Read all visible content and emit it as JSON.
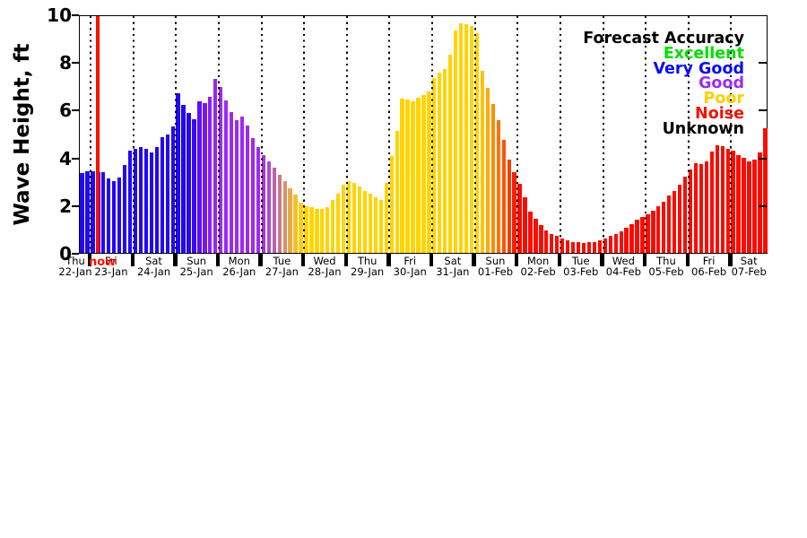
{
  "y_axis": {
    "label": "Wave Height, ft",
    "ticks": [
      0,
      2,
      4,
      6,
      8,
      10
    ]
  },
  "legend": {
    "title": "Forecast Accuracy",
    "title_color": "#000000",
    "items": [
      {
        "label": "Excellent",
        "color": "#00dd00"
      },
      {
        "label": "Very Good",
        "color": "#0a0af8"
      },
      {
        "label": "Good",
        "color": "#9b2df2"
      },
      {
        "label": "Poor",
        "color": "#ffd000"
      },
      {
        "label": "Noise",
        "color": "#fb0f00"
      },
      {
        "label": "Unknown",
        "color": "#000000"
      }
    ]
  },
  "chart_data": {
    "type": "bar",
    "title": "",
    "ylabel": "Wave Height, ft",
    "ylim": [
      0,
      10
    ],
    "yticks": [
      0,
      2,
      4,
      6,
      8,
      10
    ],
    "grid": "vertical-dotted-at-day-boundaries",
    "legend_position": "top-right-inside",
    "bar_interval_hours": 3,
    "now_line": {
      "label": "now",
      "color": "#fb0f00",
      "at_date": "23-Jan"
    },
    "days": [
      {
        "name": "Thu",
        "date": "22-Jan",
        "values": [
          3.34,
          3.42
        ],
        "colors": [
          "#2209f0",
          "#2209f0"
        ]
      },
      {
        "name": "Fri",
        "date": "23-Jan",
        "values": [
          3.42,
          3.4,
          3.37,
          3.12,
          3.02,
          3.17,
          3.7,
          4.28
        ],
        "colors": [
          "#2209f0",
          "#2209f0",
          "#2209f0",
          "#2209f0",
          "#2209f0",
          "#2209f0",
          "#2209f0",
          "#2209f0"
        ]
      },
      {
        "name": "Sat",
        "date": "24-Jan",
        "values": [
          4.38,
          4.43,
          4.35,
          4.2,
          4.45,
          4.85,
          4.95,
          5.3
        ],
        "colors": [
          "#2209f0",
          "#2209f0",
          "#2209f0",
          "#2209f0",
          "#2209f0",
          "#2209f0",
          "#2209f0",
          "#2209f0"
        ]
      },
      {
        "name": "Sun",
        "date": "25-Jan",
        "values": [
          6.68,
          6.2,
          5.88,
          5.6,
          6.36,
          6.28,
          6.55,
          7.3
        ],
        "colors": [
          "#2209f0",
          "#2209f0",
          "#2209f0",
          "#3a0af1",
          "#5a11f1",
          "#7618f2",
          "#8b20f2",
          "#9526f2"
        ]
      },
      {
        "name": "Mon",
        "date": "26-Jan",
        "values": [
          6.95,
          6.4,
          5.9,
          5.55,
          5.7,
          5.35,
          4.8,
          4.45
        ],
        "colors": [
          "#9d2af2",
          "#9d2af2",
          "#9d2af2",
          "#9d2af2",
          "#9d2af2",
          "#9d2af2",
          "#9d2af2",
          "#9d2af2"
        ]
      },
      {
        "name": "Tue",
        "date": "27-Jan",
        "values": [
          4.1,
          3.82,
          3.56,
          3.26,
          3.0,
          2.7,
          2.44,
          2.12
        ],
        "colors": [
          "#a135e3",
          "#ad4cc6",
          "#bb63a8",
          "#c97a8a",
          "#d7926b",
          "#e5aa4c",
          "#f2c12a",
          "#fcd012"
        ]
      },
      {
        "name": "Wed",
        "date": "28-Jan",
        "values": [
          1.95,
          1.9,
          1.86,
          1.86,
          1.92,
          2.2,
          2.5,
          2.85
        ],
        "colors": [
          "#ffd400",
          "#ffd400",
          "#ffd400",
          "#ffd400",
          "#ffd400",
          "#ffd400",
          "#ffd400",
          "#ffd400"
        ]
      },
      {
        "name": "Thu",
        "date": "29-Jan",
        "values": [
          3.02,
          2.95,
          2.78,
          2.6,
          2.48,
          2.35,
          2.2,
          2.95
        ],
        "colors": [
          "#ffd400",
          "#ffd400",
          "#ffd400",
          "#ffd400",
          "#ffd400",
          "#ffd400",
          "#ffd400",
          "#ffd400"
        ]
      },
      {
        "name": "Fri",
        "date": "30-Jan",
        "values": [
          4.07,
          5.13,
          6.48,
          6.42,
          6.35,
          6.5,
          6.6,
          6.75
        ],
        "colors": [
          "#ffd400",
          "#ffd400",
          "#ffd400",
          "#ffd400",
          "#ffd400",
          "#ffd400",
          "#ffd400",
          "#ffd400"
        ]
      },
      {
        "name": "Sat",
        "date": "31-Jan",
        "values": [
          7.35,
          7.55,
          7.7,
          8.32,
          9.31,
          9.62,
          9.58,
          9.52
        ],
        "colors": [
          "#ffd400",
          "#ffd400",
          "#ffd400",
          "#ffd400",
          "#ffd400",
          "#ffd400",
          "#ffd400",
          "#ffd400"
        ]
      },
      {
        "name": "Sun",
        "date": "01-Feb",
        "values": [
          9.2,
          7.62,
          6.92,
          6.23,
          5.56,
          4.74,
          3.92,
          3.39
        ],
        "colors": [
          "#ffd400",
          "#fec303",
          "#fdaa02",
          "#fc8f01",
          "#fb7301",
          "#fa5700",
          "#f93b00",
          "#f92000"
        ]
      },
      {
        "name": "Mon",
        "date": "02-Feb",
        "values": [
          2.89,
          2.32,
          1.73,
          1.44,
          1.15,
          0.95,
          0.8,
          0.7
        ],
        "colors": [
          "#f90d00",
          "#f90d00",
          "#f90d00",
          "#f90d00",
          "#f90d00",
          "#f90d00",
          "#f90d00",
          "#f90d00"
        ]
      },
      {
        "name": "Tue",
        "date": "03-Feb",
        "values": [
          0.6,
          0.52,
          0.47,
          0.44,
          0.42,
          0.44,
          0.47,
          0.52
        ],
        "colors": [
          "#f90d00",
          "#f90d00",
          "#f90d00",
          "#f90d00",
          "#f90d00",
          "#f90d00",
          "#f90d00",
          "#f90d00"
        ]
      },
      {
        "name": "Wed",
        "date": "04-Feb",
        "values": [
          0.62,
          0.7,
          0.78,
          0.9,
          1.06,
          1.22,
          1.38,
          1.5
        ],
        "colors": [
          "#f90d00",
          "#f90d00",
          "#f90d00",
          "#f90d00",
          "#f90d00",
          "#f90d00",
          "#f90d00",
          "#f90d00"
        ]
      },
      {
        "name": "Thu",
        "date": "05-Feb",
        "values": [
          1.6,
          1.75,
          1.95,
          2.15,
          2.4,
          2.6,
          2.86,
          3.2
        ],
        "colors": [
          "#f90d00",
          "#f90d00",
          "#f90d00",
          "#f90d00",
          "#f90d00",
          "#f90d00",
          "#f90d00",
          "#f90d00"
        ]
      },
      {
        "name": "Fri",
        "date": "06-Feb",
        "values": [
          3.49,
          3.77,
          3.73,
          3.84,
          4.25,
          4.53,
          4.47,
          4.37
        ],
        "colors": [
          "#f90d00",
          "#f90d00",
          "#f90d00",
          "#f90d00",
          "#f90d00",
          "#f90d00",
          "#f90d00",
          "#f90d00"
        ]
      },
      {
        "name": "Sat",
        "date": "07-Feb",
        "values": [
          4.28,
          4.11,
          4.0,
          3.84,
          3.9,
          4.21,
          5.22
        ],
        "colors": [
          "#f90d00",
          "#f90d00",
          "#f90d00",
          "#f90d00",
          "#f90d00",
          "#f90d00",
          "#f90d00"
        ]
      }
    ]
  }
}
